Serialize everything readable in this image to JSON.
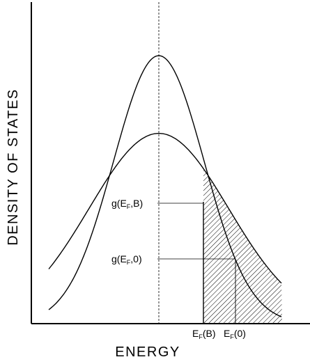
{
  "figure": {
    "y_axis_title": "DENSITY OF STATES",
    "x_axis_title": "ENERGY",
    "annotations": {
      "g_fb": {
        "prefix": "g(E",
        "sub": "F",
        "suffix": ",B)"
      },
      "g_f0": {
        "prefix": "g(E",
        "sub": "F",
        "suffix": ",0)"
      },
      "ef_b": {
        "prefix": "E",
        "sub": "F",
        "suffix": "(B)"
      },
      "ef_0": {
        "prefix": "E",
        "sub": "F",
        "suffix": "(0)"
      }
    },
    "curves": {
      "narrow_peak_relative_height": 1.0,
      "broad_peak_relative_height": 0.71
    },
    "shaded_region": "hatched"
  }
}
